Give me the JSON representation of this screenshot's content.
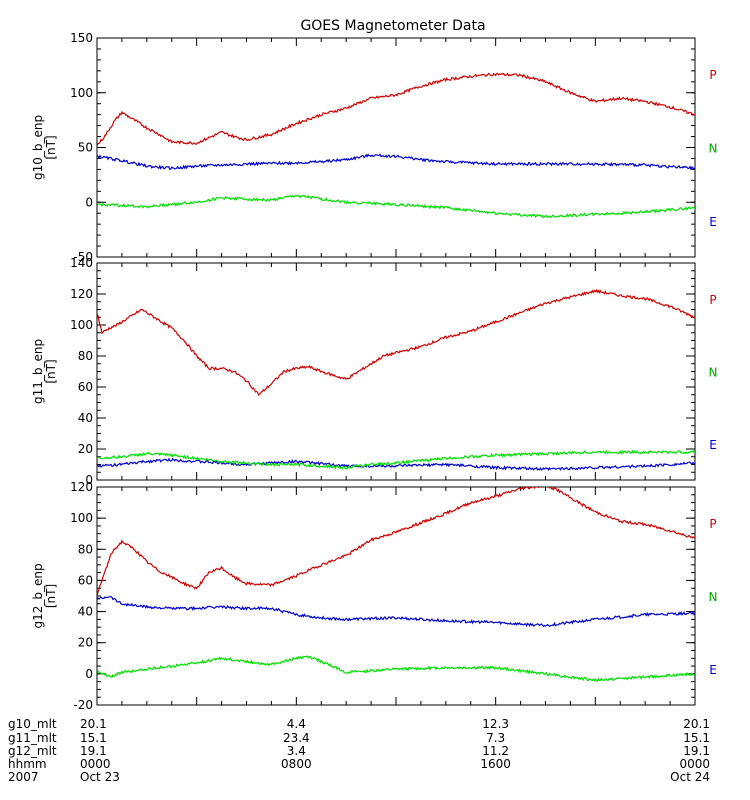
{
  "chart_data": {
    "type": "line",
    "title": "GOES Magnetometer Data",
    "x_range_hours": [
      0,
      24
    ],
    "x_minor_tick_step_hours": 1,
    "series_colors": {
      "P": "#cc0000",
      "N": "#0000cc",
      "E": "#00dd00"
    },
    "series_label_colors": {
      "P": "#cc0000",
      "N": "#00aa00",
      "E": "#0000cc"
    },
    "panels": [
      {
        "id": "g10",
        "ylabel_line1": "g10_b_enp",
        "ylabel_line2": "[nT]",
        "ylim": [
          -50,
          150
        ],
        "yticks": [
          -50,
          0,
          50,
          100,
          150
        ],
        "ytick_labels": [
          "-50",
          "0",
          "50",
          "100",
          "150"
        ],
        "yminor_step": 10,
        "right_labels": [
          "P",
          "N",
          "E"
        ],
        "series": [
          {
            "name": "P",
            "x": [
              0,
              0.3,
              0.7,
              1.0,
              1.5,
              2.0,
              2.5,
              3.0,
              4.0,
              5.0,
              5.5,
              6.0,
              7.0,
              8.0,
              9.0,
              10.0,
              11.0,
              12.0,
              13.0,
              14.0,
              15.0,
              16.0,
              17.0,
              18.0,
              19.0,
              20.0,
              21.0,
              22.0,
              23.0,
              24.0
            ],
            "y": [
              52,
              60,
              74,
              82,
              75,
              68,
              62,
              55,
              54,
              64,
              60,
              57,
              62,
              72,
              80,
              86,
              95,
              98,
              106,
              112,
              115,
              117,
              116,
              110,
              100,
              92,
              95,
              92,
              87,
              80
            ]
          },
          {
            "name": "N",
            "x": [
              0,
              1.0,
              2.0,
              3.0,
              4.0,
              5.0,
              6.0,
              8.0,
              9.0,
              10.0,
              11.0,
              12.0,
              13.0,
              14.0,
              16.0,
              18.0,
              20.0,
              22.0,
              24.0
            ],
            "y": [
              42,
              38,
              33,
              31,
              33,
              34,
              35,
              36,
              37,
              39,
              43,
              42,
              39,
              37,
              35,
              35,
              35,
              34,
              31
            ]
          },
          {
            "name": "E",
            "x": [
              0,
              1.0,
              2.0,
              3.0,
              4.0,
              5.0,
              6.0,
              7.0,
              8.0,
              10.0,
              12.0,
              14.0,
              16.0,
              18.0,
              20.0,
              22.0,
              24.0
            ],
            "y": [
              -2,
              -3,
              -4,
              -2,
              0,
              4,
              3,
              2,
              6,
              0,
              -2,
              -5,
              -10,
              -13,
              -11,
              -9,
              -5
            ]
          }
        ]
      },
      {
        "id": "g11",
        "ylabel_line1": "g11_b_enp",
        "ylabel_line2": "[nT]",
        "ylim": [
          0,
          140
        ],
        "yticks": [
          0,
          20,
          40,
          60,
          80,
          100,
          120,
          140
        ],
        "ytick_labels": [
          "0",
          "20",
          "40",
          "60",
          "80",
          "100",
          "120",
          "140"
        ],
        "yminor_step": 5,
        "right_labels": [
          "P",
          "N",
          "E"
        ],
        "series": [
          {
            "name": "P",
            "x": [
              0,
              0.2,
              0.5,
              0.8,
              1.3,
              1.8,
              2.3,
              3.0,
              3.5,
              4.0,
              4.5,
              5.0,
              5.5,
              6.0,
              6.5,
              7.0,
              7.5,
              8.0,
              8.5,
              9.0,
              10.0,
              11.0,
              11.5,
              12.0,
              13.0,
              14.0,
              15.0,
              16.0,
              17.0,
              18.0,
              19.0,
              20.0,
              21.0,
              22.0,
              23.0,
              24.0
            ],
            "y": [
              108,
              95,
              98,
              100,
              105,
              110,
              105,
              98,
              90,
              80,
              72,
              72,
              70,
              64,
              55,
              62,
              70,
              72,
              73,
              70,
              65,
              75,
              80,
              82,
              86,
              92,
              96,
              102,
              108,
              114,
              118,
              122,
              119,
              117,
              112,
              105
            ]
          },
          {
            "name": "N",
            "x": [
              0,
              1.0,
              2.0,
              3.0,
              4.0,
              5.0,
              6.0,
              7.0,
              8.0,
              10.0,
              12.0,
              14.0,
              16.0,
              18.0,
              20.0,
              22.0,
              24.0
            ],
            "y": [
              9,
              10,
              12,
              13,
              12,
              11,
              10,
              11,
              12,
              9,
              9,
              10,
              8,
              7,
              8,
              9,
              11
            ]
          },
          {
            "name": "E",
            "x": [
              0,
              1.0,
              2.0,
              3.0,
              4.0,
              5.0,
              6.0,
              7.0,
              8.0,
              10.0,
              11.0,
              12.0,
              14.0,
              16.0,
              18.0,
              20.0,
              22.0,
              24.0
            ],
            "y": [
              14,
              15,
              17,
              16,
              14,
              12,
              11,
              10,
              10,
              8,
              10,
              11,
              14,
              16,
              17,
              18,
              18,
              18
            ]
          }
        ]
      },
      {
        "id": "g12",
        "ylabel_line1": "g12_b_enp",
        "ylabel_line2": "[nT]",
        "ylim": [
          -20,
          120
        ],
        "yticks": [
          -20,
          0,
          20,
          40,
          60,
          80,
          100,
          120
        ],
        "ytick_labels": [
          "-20",
          "0",
          "20",
          "40",
          "60",
          "80",
          "100",
          "120"
        ],
        "yminor_step": 5,
        "right_labels": [
          "P",
          "N",
          "E"
        ],
        "series": [
          {
            "name": "P",
            "x": [
              0,
              0.3,
              0.6,
              1.0,
              1.5,
              2.0,
              2.5,
              3.0,
              3.5,
              4.0,
              4.5,
              5.0,
              5.5,
              6.0,
              7.0,
              8.0,
              9.0,
              10.0,
              11.0,
              12.0,
              13.0,
              14.0,
              15.0,
              16.0,
              17.0,
              18.0,
              18.5,
              19.0,
              20.0,
              21.0,
              22.0,
              23.0,
              24.0
            ],
            "y": [
              50,
              65,
              78,
              85,
              80,
              72,
              66,
              62,
              58,
              55,
              65,
              68,
              62,
              58,
              57,
              63,
              70,
              76,
              86,
              91,
              97,
              103,
              110,
              114,
              119,
              121,
              118,
              113,
              104,
              98,
              96,
              92,
              87
            ]
          },
          {
            "name": "N",
            "x": [
              0,
              0.5,
              1.0,
              2.0,
              3.0,
              4.0,
              5.0,
              6.0,
              7.0,
              8.0,
              9.0,
              10.0,
              12.0,
              14.0,
              16.0,
              18.0,
              20.0,
              22.0,
              24.0
            ],
            "y": [
              48,
              50,
              45,
              43,
              42,
              42,
              43,
              42,
              42,
              38,
              36,
              35,
              36,
              34,
              33,
              31,
              35,
              38,
              39
            ]
          },
          {
            "name": "E",
            "x": [
              0,
              0.5,
              1.0,
              2.0,
              3.0,
              4.0,
              5.0,
              6.0,
              7.0,
              8.0,
              8.5,
              9.0,
              10.0,
              12.0,
              14.0,
              16.0,
              18.0,
              20.0,
              22.0,
              24.0
            ],
            "y": [
              2,
              -2,
              1,
              3,
              5,
              7,
              10,
              8,
              6,
              10,
              11,
              8,
              1,
              3,
              4,
              4,
              0,
              -4,
              -2,
              0
            ]
          }
        ]
      }
    ],
    "x_axis_table": {
      "row_labels": [
        "g10_mlt",
        "g11_mlt",
        "g12_mlt",
        "hhmm",
        "2007"
      ],
      "columns": [
        {
          "hours": 0,
          "values": [
            "20.1",
            "15.1",
            "19.1",
            "0000",
            "Oct 23"
          ]
        },
        {
          "hours": 8,
          "values": [
            "4.4",
            "23.4",
            "3.4",
            "0800",
            ""
          ]
        },
        {
          "hours": 16,
          "values": [
            "12.3",
            "7.3",
            "11.2",
            "1600",
            ""
          ]
        },
        {
          "hours": 24,
          "values": [
            "20.1",
            "15.1",
            "19.1",
            "0000",
            "Oct 24"
          ]
        }
      ]
    }
  }
}
